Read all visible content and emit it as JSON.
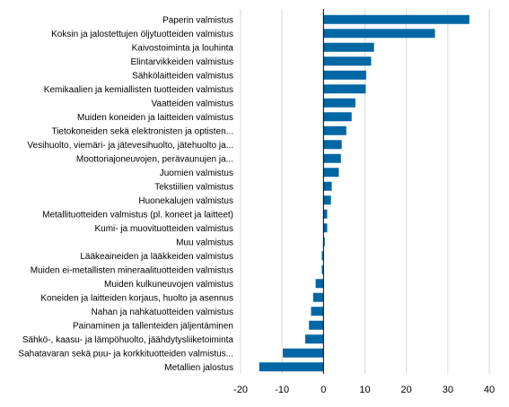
{
  "chart_data": {
    "type": "bar",
    "orientation": "horizontal",
    "title": "",
    "xlabel": "",
    "ylabel": "",
    "xlim": [
      -20,
      40
    ],
    "ticks": [
      -20,
      -10,
      0,
      10,
      20,
      30,
      40
    ],
    "grid": true,
    "bar_color": "#0067a5",
    "grid_color": "#d9d9d9",
    "categories": [
      "Paperin valmistus",
      "Koksin ja jalostettujen öljytuotteiden valmistus",
      "Kaivostoiminta ja louhinta",
      "Elintarvikkeiden valmistus",
      "Sähkölaitteiden valmistus",
      "Kemikaalien ja kemiallisten tuotteiden valmistus",
      "Vaatteiden valmistus",
      "Muiden koneiden ja laitteiden valmistus",
      "Tietokoneiden sekä elektronisten ja optisten...",
      "Vesihuolto, viemäri- ja jätevesihuolto, jätehuolto ja...",
      "Moottoriajoneuvojen, perävaunujen ja...",
      "Juomien valmistus",
      "Tekstiilien valmistus",
      "Huonekalujen valmistus",
      "Metallituotteiden valmistus (pl. koneet ja laitteet)",
      "Kumi- ja muovituotteiden valmistus",
      "Muu valmistus",
      "Lääkeaineiden ja lääkkeiden valmistus",
      "Muiden ei-metallisten mineraalituotteiden valmistus",
      "Muiden kulkuneuvojen valmistus",
      "Koneiden ja laitteiden korjaus, huolto ja asennus",
      "Nahan ja nahkatuotteiden valmistus",
      "Painaminen ja tallenteiden jäljentäminen",
      "Sähkö-, kaasu- ja lämpöhuolto, jäähdytysliiketoiminta",
      "Sahatavaran sekä puu- ja korkkituotteiden valmistus...",
      "Metallien jalostus"
    ],
    "values": [
      35.2,
      26.9,
      12.2,
      11.5,
      10.3,
      10.2,
      7.7,
      6.8,
      5.5,
      4.4,
      4.2,
      3.7,
      2.0,
      1.8,
      0.9,
      0.9,
      0.3,
      -0.4,
      -0.4,
      -1.9,
      -2.5,
      -3.0,
      -3.5,
      -4.4,
      -9.8,
      -15.5
    ]
  }
}
